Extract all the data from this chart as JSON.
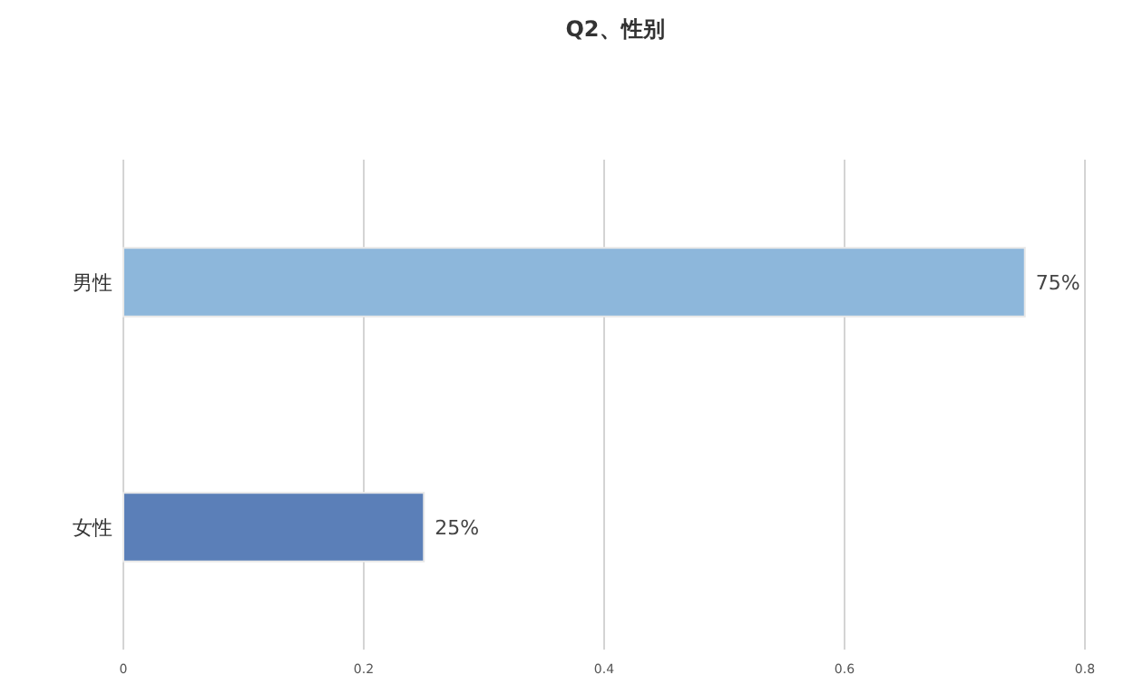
{
  "chart_data": {
    "type": "bar",
    "orientation": "horizontal",
    "title": "Q2、性别",
    "categories": [
      "男性",
      "女性"
    ],
    "values": [
      0.75,
      0.25
    ],
    "value_labels": [
      "75%",
      "25%"
    ],
    "colors": [
      "#8db7db",
      "#5b7fb8"
    ],
    "xlim": [
      0,
      0.8
    ],
    "xticks": [
      0,
      0.2,
      0.4,
      0.6,
      0.8
    ],
    "grid": "x"
  }
}
